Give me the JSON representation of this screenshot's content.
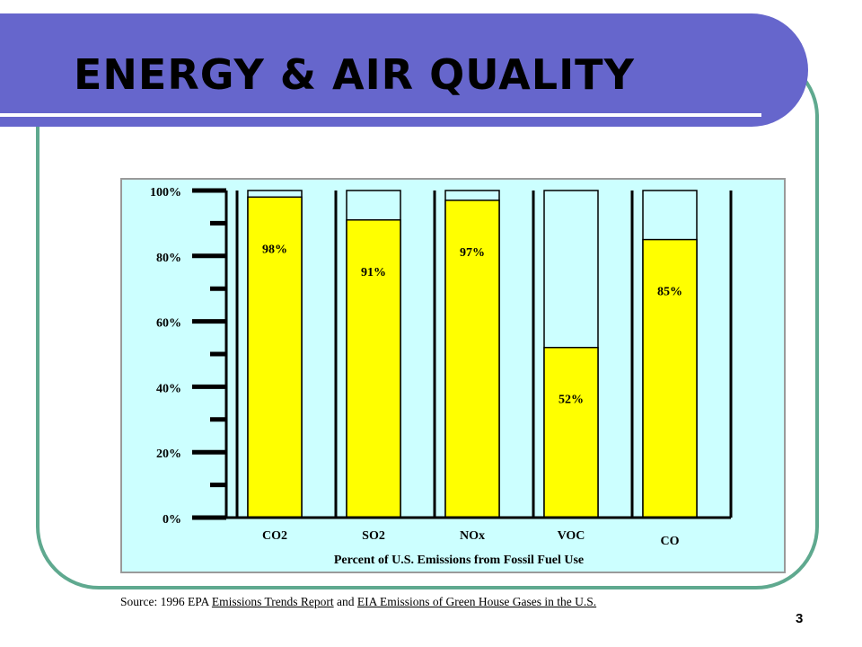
{
  "slide": {
    "title": "ENERGY & AIR QUALITY",
    "page_number": "3",
    "colors": {
      "title_band": "#6666cc",
      "frame": "#5fa98f",
      "chart_background": "#ccffff",
      "bar_fill": "#ffff00"
    }
  },
  "source": {
    "prefix": "Source:  1996 EPA ",
    "link1": "Emissions Trends Report",
    "middle": " and ",
    "link2": "EIA Emissions of Green House Gases in the U.S."
  },
  "chart_data": {
    "type": "bar",
    "stacked_to_100": true,
    "categories": [
      "CO2",
      "SO2",
      "NOx",
      "VOC",
      "CO"
    ],
    "values": [
      98,
      91,
      97,
      52,
      85
    ],
    "value_labels": [
      "98%",
      "91%",
      "97%",
      "52%",
      "85%"
    ],
    "title": "",
    "xlabel": "Percent of  U.S. Emissions from Fossil Fuel Use",
    "ylabel": "",
    "ylim": [
      0,
      100
    ],
    "y_ticks": [
      "0%",
      "20%",
      "40%",
      "60%",
      "80%",
      "100%"
    ],
    "grid": false,
    "legend": "none"
  }
}
